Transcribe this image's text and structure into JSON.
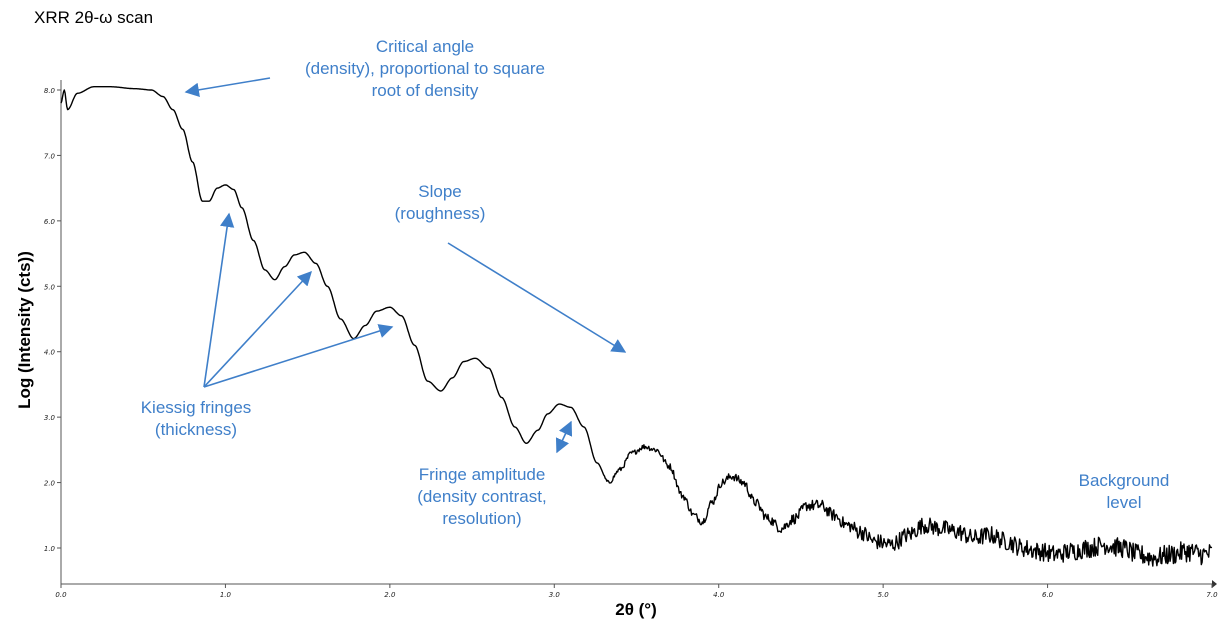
{
  "chart_data": {
    "type": "line",
    "title": "XRR 2θ-ω scan",
    "xlabel": "2θ (°)",
    "ylabel": "Log (Intensity (cts))",
    "xlim": [
      0.0,
      7.0
    ],
    "ylim": [
      0.5,
      8.1
    ],
    "xticks": [
      "0.0",
      "1.0",
      "2.0",
      "3.0",
      "4.0",
      "5.0",
      "6.0",
      "7.0"
    ],
    "yticks": [
      "1.0",
      "2.0",
      "3.0",
      "4.0",
      "5.0",
      "6.0",
      "7.0",
      "8.0"
    ],
    "grid": false,
    "legend": "none",
    "line_color": "#000000",
    "annotation_color": "#3f7fc9",
    "series": [
      {
        "x": [
          0.0,
          0.02,
          0.04,
          0.1,
          0.2,
          0.3,
          0.45,
          0.55,
          0.62,
          0.68,
          0.74,
          0.8,
          0.86,
          0.9,
          0.95,
          1.0,
          1.05,
          1.1,
          1.17,
          1.24,
          1.3,
          1.36,
          1.42,
          1.48,
          1.55,
          1.62,
          1.7,
          1.78,
          1.85,
          1.92,
          2.0,
          2.07,
          2.15,
          2.23,
          2.31,
          2.38,
          2.45,
          2.52,
          2.6,
          2.68,
          2.76,
          2.83,
          2.9,
          2.96,
          3.03,
          3.1,
          3.18,
          3.26,
          3.33,
          3.4,
          3.47,
          3.55,
          3.62,
          3.7,
          3.78,
          3.85,
          3.9,
          3.96,
          4.02,
          4.08,
          4.15,
          4.22,
          4.3,
          4.38,
          4.46,
          4.54,
          4.62,
          4.7,
          4.78,
          4.86,
          4.95,
          5.05,
          5.15,
          5.25,
          5.35,
          5.45,
          5.55,
          5.65,
          5.75,
          5.85,
          5.95,
          6.05,
          6.15,
          6.25,
          6.35,
          6.45,
          6.55,
          6.65,
          6.75,
          6.85,
          6.95,
          7.0
        ],
        "y": [
          7.8,
          8.0,
          7.7,
          7.95,
          8.05,
          8.05,
          8.02,
          8.0,
          7.9,
          7.7,
          7.4,
          6.9,
          6.3,
          6.3,
          6.5,
          6.55,
          6.48,
          6.2,
          5.7,
          5.25,
          5.1,
          5.3,
          5.48,
          5.52,
          5.35,
          5.0,
          4.5,
          4.2,
          4.4,
          4.62,
          4.68,
          4.55,
          4.1,
          3.55,
          3.4,
          3.6,
          3.85,
          3.9,
          3.75,
          3.3,
          2.85,
          2.6,
          2.8,
          3.05,
          3.2,
          3.15,
          2.85,
          2.3,
          2.0,
          2.2,
          2.45,
          2.55,
          2.5,
          2.25,
          1.8,
          1.5,
          1.4,
          1.7,
          2.0,
          2.1,
          2.0,
          1.7,
          1.45,
          1.3,
          1.45,
          1.65,
          1.65,
          1.5,
          1.35,
          1.25,
          1.1,
          1.05,
          1.2,
          1.35,
          1.3,
          1.25,
          1.15,
          1.2,
          1.1,
          1.0,
          0.95,
          0.9,
          0.95,
          1.0,
          1.05,
          1.0,
          0.9,
          0.85,
          0.9,
          0.95,
          0.9,
          0.92
        ]
      }
    ],
    "annotations": [
      {
        "name": "critical-angle",
        "lines": [
          "Critical angle",
          "(density), proportional to square",
          "root of density"
        ]
      },
      {
        "name": "slope",
        "lines": [
          "Slope",
          "(roughness)"
        ]
      },
      {
        "name": "kiessig-fringes",
        "lines": [
          "Kiessig fringes",
          "(thickness)"
        ]
      },
      {
        "name": "fringe-amplitude",
        "lines": [
          "Fringe amplitude",
          "(density contrast,",
          "resolution)"
        ]
      },
      {
        "name": "background-level",
        "lines": [
          "Background",
          "level"
        ]
      }
    ]
  }
}
